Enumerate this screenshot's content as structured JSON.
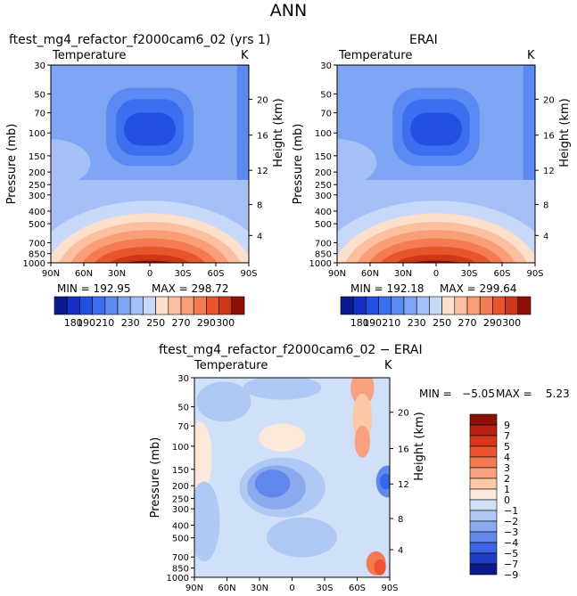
{
  "figure": {
    "title": "ANN"
  },
  "chart_data": [
    {
      "type": "heatmap",
      "panel_title": "ftest_mg4_refactor_f2000cam6_02 (yrs 1)",
      "variable": "Temperature",
      "units": "K",
      "ylabel": "Pressure (mb)",
      "ylabel_right": "Height (km)",
      "x_ticks": [
        "90N",
        "60N",
        "30N",
        "0",
        "30S",
        "60S",
        "90S"
      ],
      "x_values": [
        90,
        60,
        30,
        0,
        -30,
        -60,
        -90
      ],
      "y_ticks": [
        "30",
        "50",
        "70",
        "100",
        "150",
        "200",
        "250",
        "300",
        "400",
        "500",
        "700",
        "850",
        "1000"
      ],
      "y_values": [
        30,
        50,
        70,
        100,
        150,
        200,
        250,
        300,
        400,
        500,
        700,
        850,
        1000
      ],
      "y2_ticks": [
        "4",
        "8",
        "12",
        "16",
        "20"
      ],
      "ylim": [
        1000,
        30
      ],
      "xlim": [
        90,
        -90
      ],
      "min_label": "MIN = 192.95",
      "max_label": "MAX = 298.72",
      "min": 192.95,
      "max": 298.72,
      "colorbar_labels": [
        "180",
        "190",
        "210",
        "230",
        "250",
        "270",
        "290",
        "300"
      ],
      "colorbar_levels": [
        180,
        185,
        190,
        200,
        210,
        220,
        230,
        240,
        250,
        260,
        270,
        280,
        290,
        295,
        300
      ]
    },
    {
      "type": "heatmap",
      "panel_title": "ERAI",
      "variable": "Temperature",
      "units": "K",
      "ylabel": "Pressure (mb)",
      "ylabel_right": "Height (km)",
      "x_ticks": [
        "90N",
        "60N",
        "30N",
        "0",
        "30S",
        "60S",
        "90S"
      ],
      "x_values": [
        90,
        60,
        30,
        0,
        -30,
        -60,
        -90
      ],
      "y_ticks": [
        "30",
        "50",
        "70",
        "100",
        "150",
        "200",
        "250",
        "300",
        "400",
        "500",
        "700",
        "850",
        "1000"
      ],
      "y_values": [
        30,
        50,
        70,
        100,
        150,
        200,
        250,
        300,
        400,
        500,
        700,
        850,
        1000
      ],
      "y2_ticks": [
        "4",
        "8",
        "12",
        "16",
        "20"
      ],
      "ylim": [
        1000,
        30
      ],
      "xlim": [
        90,
        -90
      ],
      "min_label": "MIN = 192.18",
      "max_label": "MAX = 299.64",
      "min": 192.18,
      "max": 299.64,
      "colorbar_labels": [
        "180",
        "190",
        "210",
        "230",
        "250",
        "270",
        "290",
        "300"
      ],
      "colorbar_levels": [
        180,
        185,
        190,
        200,
        210,
        220,
        230,
        240,
        250,
        260,
        270,
        280,
        290,
        295,
        300
      ]
    },
    {
      "type": "heatmap",
      "panel_title": "ftest_mg4_refactor_f2000cam6_02 − ERAI",
      "variable": "Temperature",
      "units": "K",
      "ylabel": "Pressure (mb)",
      "ylabel_right": "Height (km)",
      "x_ticks": [
        "90N",
        "60N",
        "30N",
        "0",
        "30S",
        "60S",
        "90S"
      ],
      "x_values": [
        90,
        60,
        30,
        0,
        -30,
        -60,
        -90
      ],
      "y_ticks": [
        "30",
        "50",
        "70",
        "100",
        "150",
        "200",
        "250",
        "300",
        "400",
        "500",
        "700",
        "850",
        "1000"
      ],
      "y_values": [
        30,
        50,
        70,
        100,
        150,
        200,
        250,
        300,
        400,
        500,
        700,
        850,
        1000
      ],
      "y2_ticks": [
        "4",
        "8",
        "12",
        "16",
        "20"
      ],
      "ylim": [
        1000,
        30
      ],
      "xlim": [
        90,
        -90
      ],
      "min_label": "MIN =   −5.05",
      "max_label": "MAX =    5.23",
      "min": -5.05,
      "max": 5.23,
      "colorbar_labels": [
        "9",
        "7",
        "5",
        "4",
        "3",
        "2",
        "1",
        "0",
        "−1",
        "−2",
        "−3",
        "−4",
        "−5",
        "−7",
        "−9"
      ],
      "colorbar_levels": [
        9,
        7,
        5,
        4,
        3,
        2,
        1,
        0,
        -1,
        -2,
        -3,
        -4,
        -5,
        -7,
        -9
      ]
    }
  ],
  "colors": {
    "temp_scale": [
      "#0a1a8c",
      "#1530c8",
      "#2250e0",
      "#3c6ef0",
      "#5b8af2",
      "#7ea6f4",
      "#a4c0f6",
      "#c8d8f8",
      "#fde0cc",
      "#fcc0a0",
      "#fa9e78",
      "#f47b52",
      "#e8542c",
      "#cc3818",
      "#8e1006"
    ],
    "diff_scale": [
      "#8e1006",
      "#b82010",
      "#d83818",
      "#ec5430",
      "#f47a52",
      "#f8a080",
      "#fcc8a8",
      "#fde8dc",
      "#d0e0f8",
      "#b0c8f4",
      "#8aaaf0",
      "#6088ec",
      "#3a64e4",
      "#1f3ec8",
      "#0a1a8c"
    ]
  }
}
